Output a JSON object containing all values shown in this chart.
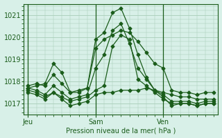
{
  "background_color": "#d8f0e8",
  "grid_color": "#a8cdb8",
  "line_color": "#1a5c1a",
  "marker": "D",
  "marker_size": 2.5,
  "xlabel": "Pression niveau de la mer( hPa )",
  "ylim": [
    1016.5,
    1021.5
  ],
  "yticks": [
    1017,
    1018,
    1019,
    1020,
    1021
  ],
  "xtick_labels": [
    "Jeu",
    "Sam",
    "Ven"
  ],
  "xtick_positions": [
    0,
    8,
    16
  ],
  "xlim": [
    -0.5,
    22.5
  ],
  "vlines": [
    0,
    8,
    16
  ],
  "series": [
    [
      1017.7,
      1017.8,
      1017.9,
      1018.8,
      1018.4,
      1017.5,
      1017.6,
      1017.7,
      1019.5,
      1019.9,
      1020.1,
      1020.3,
      1020.2,
      1019.8,
      1019.3,
      1018.8,
      1018.6,
      1017.6,
      1017.5,
      1017.5,
      1017.4,
      1017.5,
      1017.5
    ],
    [
      1017.5,
      1017.4,
      1017.2,
      1017.5,
      1017.2,
      1016.9,
      1017.0,
      1017.1,
      1017.4,
      1017.5,
      1017.5,
      1017.6,
      1017.6,
      1017.6,
      1017.7,
      1017.6,
      1017.5,
      1017.4,
      1017.3,
      1017.3,
      1017.2,
      1017.2,
      1017.2
    ],
    [
      1017.8,
      1017.9,
      1017.8,
      1018.3,
      1017.9,
      1017.5,
      1017.5,
      1017.7,
      1019.9,
      1020.2,
      1021.1,
      1021.3,
      1020.4,
      1019.2,
      1018.2,
      1017.6,
      1017.3,
      1016.9,
      1017.0,
      1017.0,
      1016.9,
      1017.0,
      1017.0
    ],
    [
      1017.7,
      1017.6,
      1017.4,
      1017.8,
      1017.5,
      1017.2,
      1017.3,
      1017.4,
      1018.6,
      1019.2,
      1020.3,
      1020.6,
      1019.7,
      1018.6,
      1018.1,
      1017.6,
      1017.4,
      1017.1,
      1017.1,
      1017.1,
      1017.0,
      1017.1,
      1017.1
    ],
    [
      1017.6,
      1017.5,
      1017.3,
      1017.5,
      1017.3,
      1017.1,
      1017.2,
      1017.3,
      1017.6,
      1017.8,
      1019.6,
      1020.1,
      1019.9,
      1018.1,
      1017.8,
      1017.5,
      1017.2,
      1017.0,
      1017.0,
      1017.0,
      1016.9,
      1017.0,
      1017.0
    ]
  ]
}
